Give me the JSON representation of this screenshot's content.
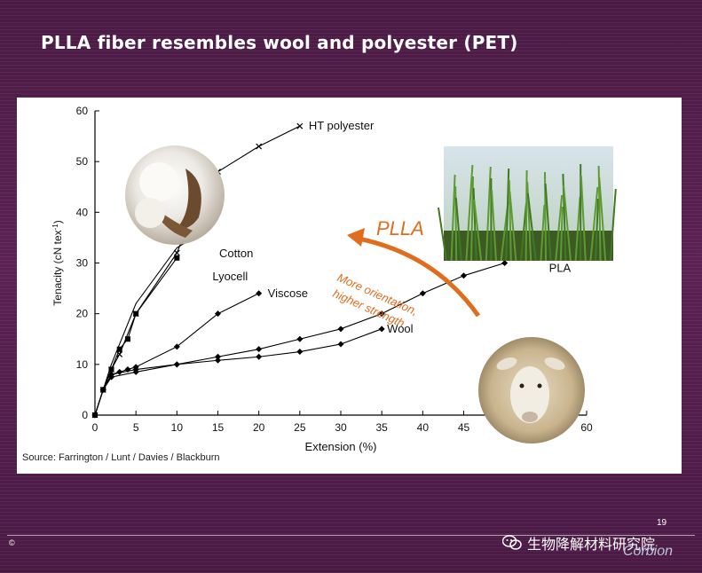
{
  "slide": {
    "title": "PLLA  fiber resembles wool and polyester (PET)",
    "page_number": "19",
    "copyright": "©",
    "brand": "Corbion",
    "watermark": "生物降解材料研究院",
    "colors": {
      "background": "#4a1a44",
      "panel": "#ffffff",
      "arrow": "#e06d1e"
    }
  },
  "chart_data": {
    "type": "line",
    "xlabel": "Extension (%)",
    "ylabel": "Tenacity (cN tex",
    "ylabel_sup": "-1",
    "ylabel_close": ")",
    "xlim": [
      0,
      60
    ],
    "ylim": [
      0,
      60
    ],
    "xticks": [
      "0",
      "5",
      "10",
      "15",
      "20",
      "25",
      "30",
      "35",
      "40",
      "45",
      "50",
      "55",
      "60"
    ],
    "yticks": [
      "0",
      "10",
      "20",
      "30",
      "40",
      "50",
      "60"
    ],
    "grid": false,
    "source": "Source: Farrington / Lunt / Davies / Blackburn",
    "series": [
      {
        "name": "HT polyester",
        "marker": "x",
        "x": [
          0,
          1,
          2,
          3,
          5,
          10,
          12,
          15,
          20,
          25
        ],
        "y": [
          0,
          5,
          9,
          12,
          20,
          32,
          40,
          48,
          53,
          57
        ]
      },
      {
        "name": "Lyocell",
        "marker": "square",
        "x": [
          0,
          1,
          2,
          3,
          4,
          5,
          10
        ],
        "y": [
          0,
          5,
          9,
          13,
          15,
          20,
          31
        ]
      },
      {
        "name": "Cotton",
        "marker": "none",
        "x": [
          0,
          1,
          2,
          3,
          5,
          10,
          13
        ],
        "y": [
          0,
          5,
          10,
          14,
          22,
          33,
          36
        ]
      },
      {
        "name": "Viscose",
        "marker": "diamond",
        "x": [
          0,
          1,
          2,
          3,
          4,
          5,
          10,
          15,
          20
        ],
        "y": [
          0,
          5,
          8,
          8.5,
          9,
          9.5,
          13.5,
          20,
          24
        ]
      },
      {
        "name": "PLA",
        "marker": "diamond",
        "x": [
          0,
          1,
          2,
          5,
          10,
          15,
          20,
          25,
          30,
          35,
          40,
          45,
          50
        ],
        "y": [
          0,
          5,
          8,
          9,
          10,
          11.5,
          13,
          15,
          17,
          20,
          24,
          27.5,
          30
        ]
      },
      {
        "name": "Wool",
        "marker": "diamond",
        "x": [
          0,
          1,
          2,
          5,
          10,
          15,
          20,
          25,
          30,
          35
        ],
        "y": [
          0,
          5,
          7.5,
          8.5,
          10,
          10.8,
          11.5,
          12.5,
          14,
          17
        ]
      }
    ],
    "annotations": [
      {
        "text": "PLLA"
      },
      {
        "text": "More orientation,"
      },
      {
        "text": "higher strength"
      }
    ]
  },
  "images": {
    "cotton": "cotton-photo",
    "sugarcane": "sugarcane-photo",
    "sheep": "sheep-photo"
  }
}
